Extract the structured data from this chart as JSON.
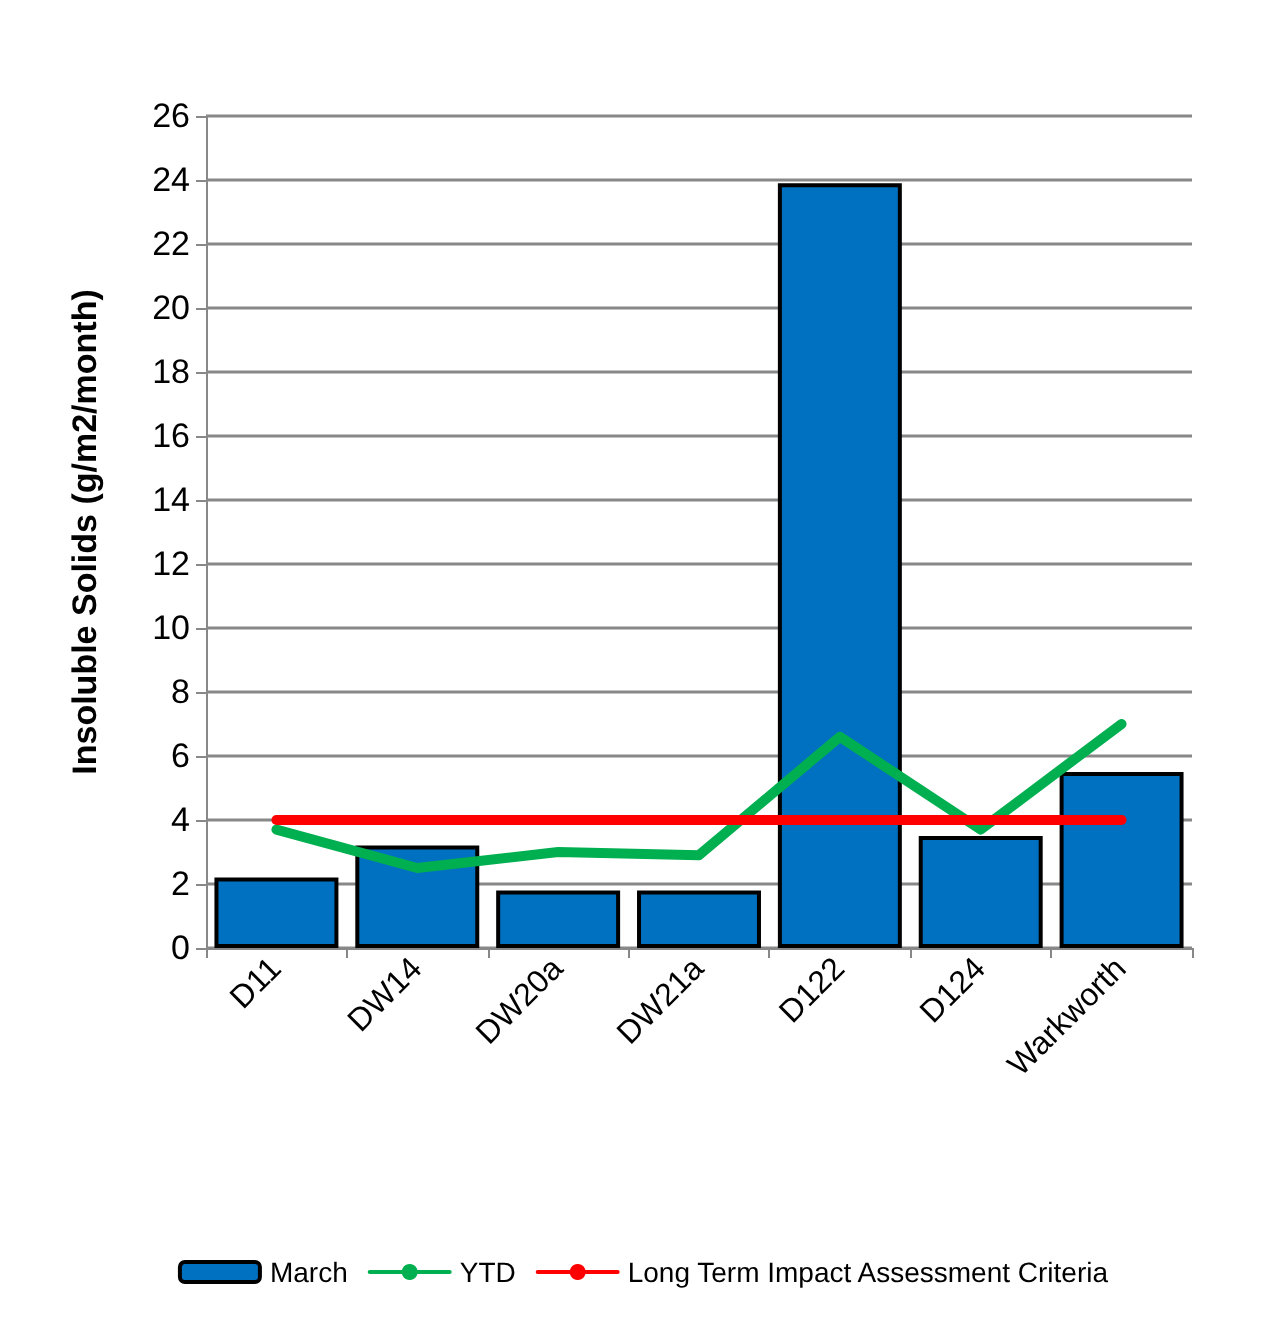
{
  "chart_data": {
    "type": "bar",
    "ylabel": "Insoluble Solids (g/m2/month)",
    "categories": [
      "D11",
      "DW14",
      "DW20a",
      "DW21a",
      "D122",
      "D124",
      "Warkworth"
    ],
    "series": [
      {
        "name": "March",
        "color": "#0070c0",
        "values": [
          2.2,
          3.2,
          1.8,
          1.8,
          23.9,
          3.5,
          5.5
        ]
      },
      {
        "name": "YTD",
        "type": "line",
        "color": "#00b050",
        "values": [
          3.7,
          2.5,
          3.0,
          2.9,
          6.6,
          3.7,
          7.0
        ]
      },
      {
        "name": "Long Term Impact Assessment Criteria",
        "type": "line",
        "color": "#ff0000",
        "values": [
          4,
          4,
          4,
          4,
          4,
          4,
          4
        ]
      }
    ],
    "ylim": [
      0,
      26
    ],
    "yticks": [
      0,
      2,
      4,
      6,
      8,
      10,
      12,
      14,
      16,
      18,
      20,
      22,
      24,
      26
    ],
    "grid": "y",
    "legend": "bottom",
    "marker": "none"
  }
}
